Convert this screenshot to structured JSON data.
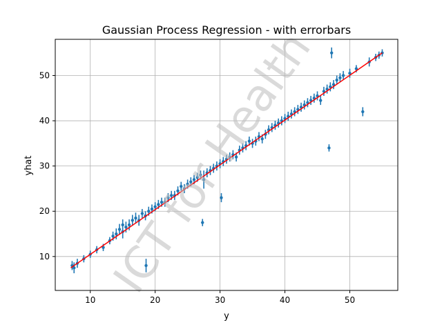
{
  "chart_data": {
    "type": "scatter",
    "title": "Gaussian Process Regression - with errorbars",
    "xlabel": "y",
    "ylabel": "yhat",
    "xlim": [
      4.6,
      57.4
    ],
    "ylim": [
      2.5,
      58.0
    ],
    "xticks": [
      10,
      20,
      30,
      40,
      50
    ],
    "yticks": [
      10,
      20,
      30,
      40,
      50
    ],
    "grid": true,
    "legend": "none",
    "watermark": "ICT for Health",
    "colors": {
      "points": "#1f77b4",
      "reference_line": "#ff0000",
      "grid": "#b0b0b0"
    },
    "reference_line": {
      "x": [
        7,
        55
      ],
      "y": [
        7.5,
        55
      ]
    },
    "series": [
      {
        "marker": "errorbar",
        "x": [
          7.2,
          7.5,
          8.0,
          9.0,
          10.0,
          11.0,
          12.0,
          13.0,
          13.5,
          14.0,
          14.5,
          15.0,
          15.0,
          15.5,
          16.0,
          16.5,
          17.0,
          17.5,
          18.0,
          18.5,
          18.6,
          19.0,
          19.5,
          20.0,
          20.5,
          21.0,
          21.5,
          22.0,
          22.5,
          23.0,
          23.5,
          24.0,
          24.5,
          25.0,
          25.5,
          26.0,
          26.5,
          27.0,
          27.3,
          27.5,
          28.0,
          28.5,
          29.0,
          29.5,
          30.0,
          30.2,
          30.5,
          31.0,
          31.5,
          32.0,
          32.5,
          33.0,
          33.5,
          34.0,
          34.5,
          35.0,
          35.5,
          36.0,
          36.5,
          37.0,
          37.5,
          38.0,
          38.5,
          39.0,
          39.5,
          40.0,
          40.5,
          41.0,
          41.5,
          42.0,
          42.5,
          43.0,
          43.5,
          44.0,
          44.5,
          45.0,
          45.5,
          46.0,
          46.5,
          46.8,
          47.0,
          47.2,
          47.5,
          48.0,
          48.5,
          49.0,
          50.0,
          51.0,
          52.0,
          53.0,
          54.0,
          54.5,
          55.0
        ],
        "y": [
          8.0,
          7.5,
          8.5,
          9.5,
          10.5,
          11.5,
          12.0,
          13.5,
          14.5,
          15.0,
          16.0,
          17.0,
          15.5,
          16.5,
          17.0,
          18.0,
          18.5,
          18.0,
          19.5,
          19.0,
          8.0,
          20.0,
          20.5,
          21.0,
          21.5,
          22.0,
          22.0,
          23.0,
          23.5,
          23.5,
          24.5,
          25.5,
          25.0,
          26.0,
          26.5,
          27.0,
          27.5,
          28.0,
          17.5,
          27.0,
          28.5,
          29.0,
          29.5,
          30.0,
          30.5,
          23.0,
          31.0,
          31.5,
          32.0,
          32.5,
          32.0,
          33.5,
          34.0,
          34.5,
          35.5,
          35.0,
          35.5,
          36.5,
          36.0,
          37.0,
          38.0,
          38.5,
          39.0,
          39.5,
          40.0,
          40.5,
          41.0,
          41.5,
          42.0,
          42.5,
          43.0,
          43.5,
          44.0,
          44.5,
          45.0,
          45.5,
          44.5,
          46.5,
          47.0,
          34.0,
          47.5,
          55.0,
          48.0,
          49.0,
          49.5,
          50.0,
          50.5,
          51.5,
          42.0,
          53.0,
          54.0,
          54.5,
          55.0
        ],
        "err": [
          1.0,
          1.2,
          1.0,
          0.8,
          0.8,
          0.8,
          0.8,
          0.8,
          1.0,
          1.2,
          1.2,
          1.2,
          1.5,
          1.2,
          1.2,
          1.2,
          1.2,
          1.2,
          1.0,
          1.0,
          1.5,
          1.0,
          1.0,
          1.0,
          1.0,
          1.0,
          1.0,
          1.0,
          1.0,
          1.0,
          1.0,
          1.0,
          1.0,
          1.0,
          1.0,
          1.0,
          1.0,
          1.0,
          0.8,
          2.0,
          1.0,
          1.0,
          1.0,
          1.0,
          1.0,
          1.0,
          1.0,
          1.0,
          1.0,
          1.0,
          1.0,
          1.0,
          1.0,
          1.0,
          1.0,
          1.0,
          1.0,
          1.0,
          1.0,
          1.0,
          1.0,
          1.0,
          1.0,
          1.0,
          1.0,
          1.0,
          1.0,
          1.0,
          1.0,
          1.0,
          1.0,
          1.0,
          1.0,
          1.0,
          1.0,
          1.0,
          1.0,
          1.0,
          1.0,
          0.8,
          1.0,
          1.2,
          1.0,
          1.0,
          1.0,
          1.0,
          1.0,
          0.8,
          1.0,
          1.0,
          0.8,
          0.8,
          0.8
        ]
      }
    ]
  }
}
